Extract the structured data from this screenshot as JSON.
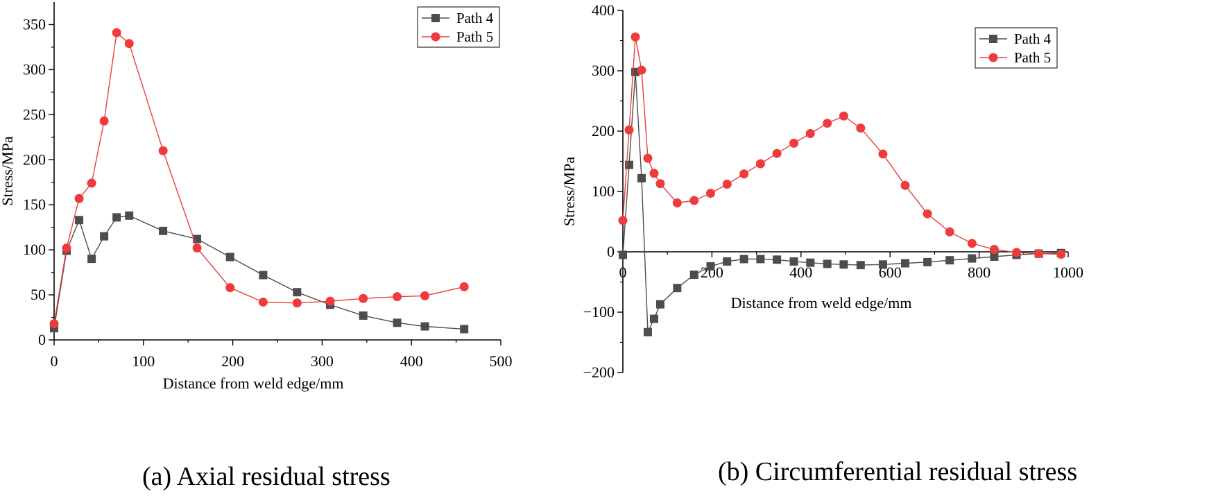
{
  "colors": {
    "path4": "#4d4d4d",
    "path5": "#ee3b3b",
    "axis": "#000000"
  },
  "chart_data": [
    {
      "type": "line",
      "caption": "(a) Axial residual stress",
      "xlabel": "Distance from weld edge/mm",
      "ylabel": "Stress/MPa",
      "xlim": [
        0,
        500
      ],
      "ylim": [
        0,
        375
      ],
      "xticks": [
        0,
        100,
        200,
        300,
        400,
        500
      ],
      "yticks": [
        0,
        50,
        100,
        150,
        200,
        250,
        300,
        350
      ],
      "legend_position": "top-right",
      "series": [
        {
          "name": "Path 4",
          "marker": "square",
          "color": "#4d4d4d",
          "x": [
            0,
            14,
            28,
            42,
            56,
            70,
            84,
            122,
            160,
            197,
            234,
            272,
            309,
            346,
            384,
            415,
            459
          ],
          "y": [
            13,
            99,
            133,
            90,
            115,
            136,
            138,
            121,
            112,
            92,
            72,
            53,
            39,
            27,
            19,
            15,
            12
          ]
        },
        {
          "name": "Path 5",
          "marker": "circle",
          "color": "#ee3b3b",
          "x": [
            0,
            14,
            28,
            42,
            56,
            70,
            84,
            122,
            160,
            197,
            234,
            272,
            309,
            346,
            384,
            415,
            459
          ],
          "y": [
            18,
            102,
            157,
            174,
            243,
            341,
            329,
            210,
            102,
            58,
            42,
            41,
            43,
            46,
            48,
            49,
            59
          ]
        }
      ]
    },
    {
      "type": "line",
      "caption": "(b) Circumferential residual stress",
      "xlabel": "Distance from weld edge/mm",
      "ylabel": "Stress/MPa",
      "xlim": [
        0,
        1000
      ],
      "ylim": [
        -200,
        400
      ],
      "xticks": [
        0,
        200,
        400,
        600,
        800,
        1000
      ],
      "yticks": [
        -200,
        -100,
        0,
        100,
        200,
        300,
        400
      ],
      "legend_position": "top-right",
      "series": [
        {
          "name": "Path 4",
          "marker": "square",
          "color": "#4d4d4d",
          "x": [
            0,
            14,
            28,
            42,
            56,
            70,
            84,
            122,
            160,
            197,
            234,
            272,
            309,
            346,
            384,
            421,
            459,
            496,
            534,
            584,
            634,
            684,
            734,
            784,
            834,
            884,
            934,
            984
          ],
          "y": [
            -5,
            144,
            298,
            122,
            -133,
            -111,
            -87,
            -60,
            -38,
            -24,
            -16,
            -12,
            -12,
            -13,
            -16,
            -18,
            -20,
            -21,
            -22,
            -21,
            -19,
            -17,
            -14,
            -11,
            -8,
            -5,
            -3,
            -2
          ]
        },
        {
          "name": "Path 5",
          "marker": "circle",
          "color": "#ee3b3b",
          "x": [
            0,
            14,
            28,
            42,
            56,
            70,
            84,
            122,
            160,
            197,
            234,
            272,
            309,
            346,
            384,
            421,
            459,
            496,
            534,
            584,
            634,
            684,
            734,
            784,
            834,
            884,
            934,
            984
          ],
          "y": [
            52,
            202,
            356,
            301,
            155,
            130,
            113,
            81,
            85,
            97,
            112,
            129,
            146,
            163,
            180,
            196,
            213,
            225,
            205,
            162,
            110,
            63,
            33,
            14,
            4,
            -1,
            -3,
            -4
          ]
        }
      ]
    }
  ]
}
